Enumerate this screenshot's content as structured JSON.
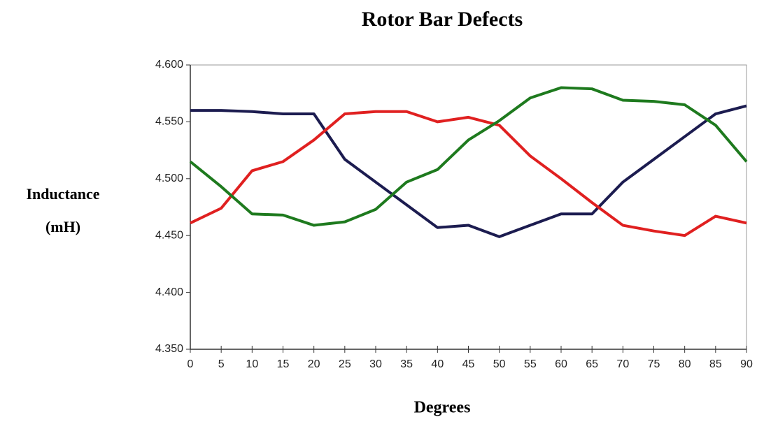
{
  "chart_data": {
    "type": "line",
    "title": "Rotor Bar Defects",
    "xlabel": "Degrees",
    "ylabel": [
      "Inductance",
      "(mH)"
    ],
    "x": [
      0,
      5,
      10,
      15,
      20,
      25,
      30,
      35,
      40,
      45,
      50,
      55,
      60,
      65,
      70,
      75,
      80,
      85,
      90
    ],
    "xlim": [
      0,
      90
    ],
    "xticks": [
      0,
      5,
      10,
      15,
      20,
      25,
      30,
      35,
      40,
      45,
      50,
      55,
      60,
      65,
      70,
      75,
      80,
      85,
      90
    ],
    "ylim": [
      4.35,
      4.6
    ],
    "yticks": [
      {
        "value": 4.35,
        "label": "4.350"
      },
      {
        "value": 4.4,
        "label": "4.400"
      },
      {
        "value": 4.45,
        "label": "4.450"
      },
      {
        "value": 4.5,
        "label": "4.500"
      },
      {
        "value": 4.55,
        "label": "4.550"
      },
      {
        "value": 4.6,
        "label": "4.600"
      }
    ],
    "grid": false,
    "series": [
      {
        "color": "#1c1c50",
        "values": [
          4.56,
          4.56,
          4.559,
          4.557,
          4.557,
          4.517,
          4.497,
          4.477,
          4.457,
          4.459,
          4.449,
          4.459,
          4.469,
          4.469,
          4.497,
          4.517,
          4.537,
          4.557,
          4.564
        ]
      },
      {
        "color": "#e02020",
        "values": [
          4.461,
          4.474,
          4.507,
          4.515,
          4.534,
          4.557,
          4.559,
          4.559,
          4.55,
          4.554,
          4.547,
          4.52,
          4.5,
          4.479,
          4.459,
          4.454,
          4.45,
          4.467,
          4.461
        ]
      },
      {
        "color": "#1e7a1e",
        "values": [
          4.515,
          4.493,
          4.469,
          4.468,
          4.459,
          4.462,
          4.473,
          4.497,
          4.508,
          4.534,
          4.551,
          4.571,
          4.58,
          4.579,
          4.569,
          4.568,
          4.565,
          4.547,
          4.515
        ]
      }
    ]
  }
}
